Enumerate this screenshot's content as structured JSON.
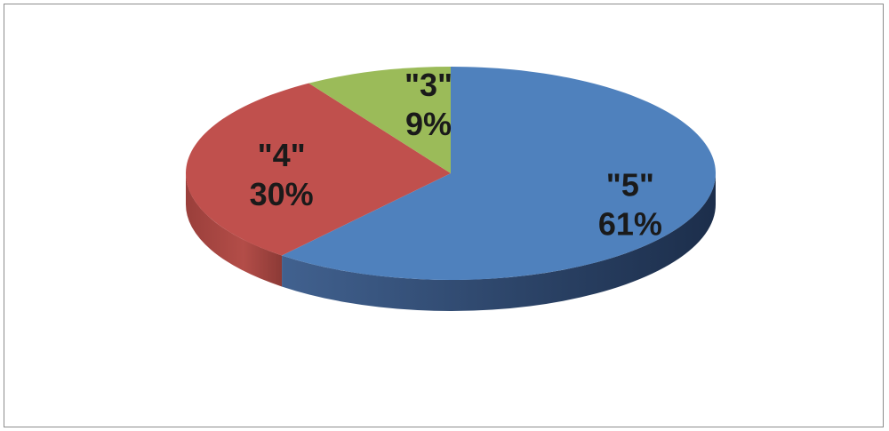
{
  "chart_data": {
    "type": "pie",
    "style": "3d",
    "title": "",
    "legend": "none",
    "categories": [
      "\"5\"",
      "\"4\"",
      "\"3\""
    ],
    "values": [
      61,
      30,
      9
    ],
    "unit": "%",
    "labels": [
      {
        "category": "\"5\"",
        "percent": "61%"
      },
      {
        "category": "\"4\"",
        "percent": "30%"
      },
      {
        "category": "\"3\"",
        "percent": "9%"
      }
    ],
    "colors": {
      "top": [
        "#4f81bd",
        "#c0504d",
        "#9bbb59"
      ],
      "side_light": [
        "#3f5f8f",
        "#b5504b",
        "#8aa84f"
      ],
      "side_dark": [
        "#1f3352",
        "#8c3a36",
        "#6b8a3a"
      ]
    }
  }
}
